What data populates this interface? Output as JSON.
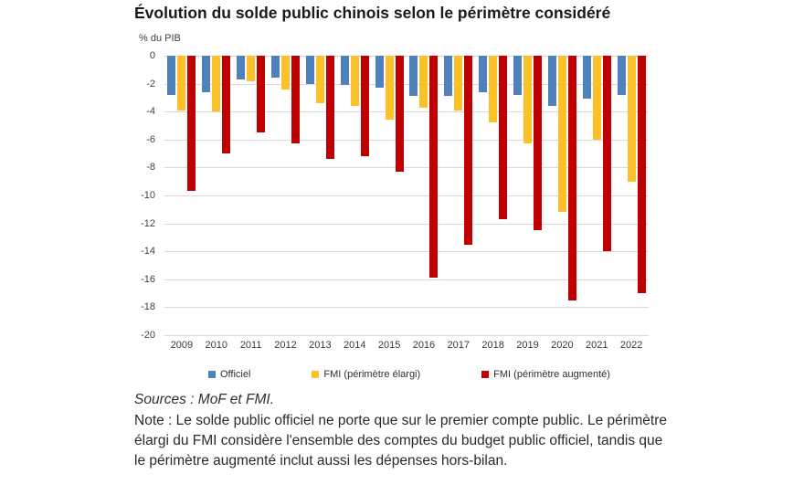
{
  "page": {
    "title": "Évolution du solde public chinois selon le périmètre considéré",
    "axis_unit_label": "% du PIB"
  },
  "chart_data": {
    "type": "bar",
    "title": "Évolution du solde public chinois selon le périmètre considéré",
    "ylabel": "% du PIB",
    "xlabel": "",
    "ylim": [
      -20,
      0
    ],
    "ytick_step": 2,
    "grid": true,
    "legend_position": "bottom",
    "categories": [
      "2009",
      "2010",
      "2011",
      "2012",
      "2013",
      "2014",
      "2015",
      "2016",
      "2017",
      "2018",
      "2019",
      "2020",
      "2021",
      "2022"
    ],
    "series": [
      {
        "name": "Officiel",
        "color": "#4F81BD",
        "values": [
          -2.8,
          -2.6,
          -1.7,
          -1.6,
          -2.0,
          -2.1,
          -2.3,
          -2.9,
          -2.9,
          -2.6,
          -2.8,
          -3.6,
          -3.1,
          -2.8
        ]
      },
      {
        "name": "FMI (périmètre élargi)",
        "color": "#FCC028",
        "values": [
          -3.9,
          -4.0,
          -1.8,
          -2.4,
          -3.4,
          -3.6,
          -4.6,
          -3.7,
          -3.9,
          -4.8,
          -6.3,
          -11.2,
          -6.0,
          -9.0
        ]
      },
      {
        "name": "FMI (périmètre augmenté)",
        "color": "#C00000",
        "values": [
          -9.7,
          -7.0,
          -5.5,
          -6.3,
          -7.4,
          -7.2,
          -8.3,
          -15.9,
          -13.5,
          -11.7,
          -12.5,
          -17.5,
          -14.0,
          -17.0
        ]
      }
    ]
  },
  "footer": {
    "sources": "Sources : MoF et FMI.",
    "note": "Note : Le solde public officiel ne porte que sur le premier compte public. Le périmètre élargi du FMI considère l'ensemble des comptes du budget public officiel, tandis que le périmètre augmenté inclut aussi les dépenses hors-bilan."
  },
  "colors": {
    "grid": "#d9d9d9",
    "axis_text": "#3f3f3f",
    "body_text": "#2a2a2a"
  }
}
